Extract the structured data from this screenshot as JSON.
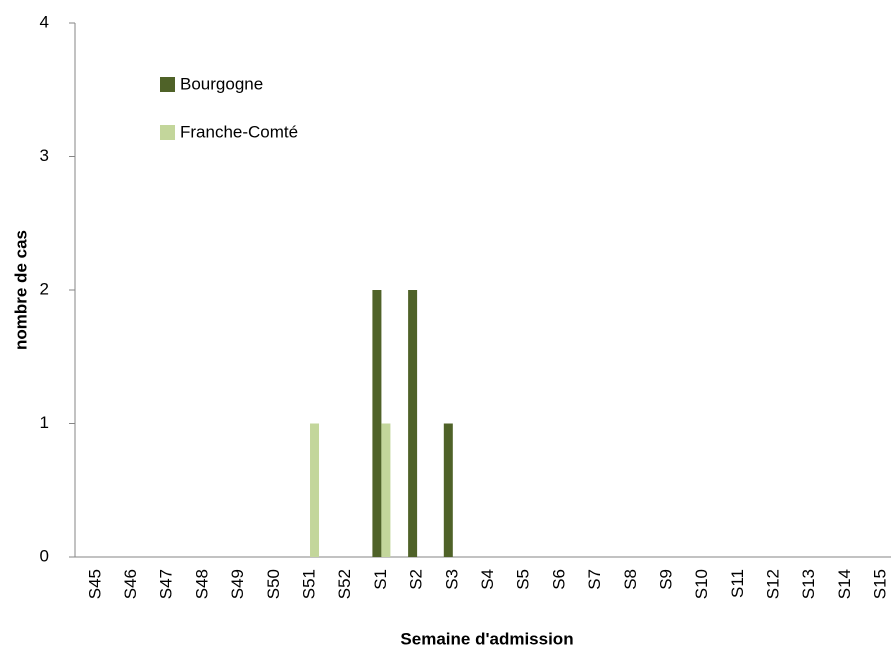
{
  "chart_data": {
    "type": "bar",
    "x_label": "Semaine d'admission",
    "y_label": "nombre de cas",
    "categories": [
      "S45",
      "S46",
      "S47",
      "S48",
      "S49",
      "S50",
      "S51",
      "S52",
      "S1",
      "S2",
      "S3",
      "S4",
      "S5",
      "S6",
      "S7",
      "S8",
      "S9",
      "S10",
      "S11",
      "S12",
      "S13",
      "S14",
      "S15"
    ],
    "series": [
      {
        "name": "Bourgogne",
        "color": "#4f6228",
        "values": [
          0,
          0,
          0,
          0,
          0,
          0,
          0,
          0,
          2,
          2,
          1,
          0,
          0,
          0,
          0,
          0,
          0,
          0,
          0,
          0,
          0,
          0,
          0
        ]
      },
      {
        "name": "Franche-Comté",
        "color": "#c3d69b",
        "values": [
          0,
          0,
          0,
          0,
          0,
          0,
          1,
          0,
          1,
          0,
          0,
          0,
          0,
          0,
          0,
          0,
          0,
          0,
          0,
          0,
          0,
          0,
          0
        ]
      }
    ],
    "ylim": [
      0,
      4
    ],
    "yticks": [
      0,
      1,
      2,
      3,
      4
    ],
    "grid": false
  }
}
